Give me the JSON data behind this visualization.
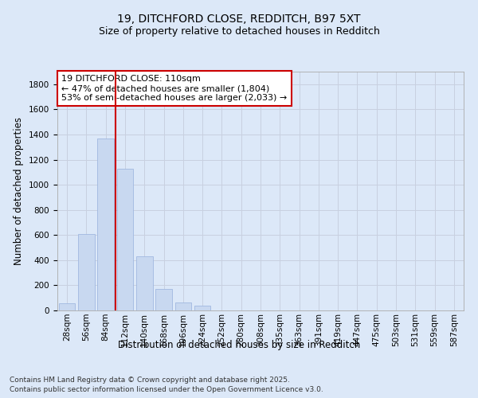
{
  "title_line1": "19, DITCHFORD CLOSE, REDDITCH, B97 5XT",
  "title_line2": "Size of property relative to detached houses in Redditch",
  "xlabel": "Distribution of detached houses by size in Redditch",
  "ylabel": "Number of detached properties",
  "categories": [
    "28sqm",
    "56sqm",
    "84sqm",
    "112sqm",
    "140sqm",
    "168sqm",
    "196sqm",
    "224sqm",
    "252sqm",
    "280sqm",
    "308sqm",
    "335sqm",
    "363sqm",
    "391sqm",
    "419sqm",
    "447sqm",
    "475sqm",
    "503sqm",
    "531sqm",
    "559sqm",
    "587sqm"
  ],
  "values": [
    55,
    605,
    1365,
    1130,
    430,
    170,
    65,
    35,
    0,
    0,
    0,
    0,
    0,
    0,
    0,
    0,
    0,
    0,
    0,
    0,
    0
  ],
  "bar_color": "#c8d8f0",
  "bar_edge_color": "#a0b8e0",
  "vline_x_index": 3,
  "vline_color": "#cc0000",
  "annotation_text_line1": "19 DITCHFORD CLOSE: 110sqm",
  "annotation_text_line2": "← 47% of detached houses are smaller (1,804)",
  "annotation_text_line3": "53% of semi-detached houses are larger (2,033) →",
  "annotation_box_facecolor": "#ffffff",
  "annotation_box_edgecolor": "#cc0000",
  "ylim": [
    0,
    1900
  ],
  "yticks": [
    0,
    200,
    400,
    600,
    800,
    1000,
    1200,
    1400,
    1600,
    1800
  ],
  "grid_color": "#c8d0e0",
  "background_color": "#dce8f8",
  "plot_bg_color": "#dce8f8",
  "footer_line1": "Contains HM Land Registry data © Crown copyright and database right 2025.",
  "footer_line2": "Contains public sector information licensed under the Open Government Licence v3.0.",
  "title_fontsize": 10,
  "subtitle_fontsize": 9,
  "axis_label_fontsize": 8.5,
  "tick_fontsize": 7.5,
  "annotation_fontsize": 8,
  "footer_fontsize": 6.5
}
